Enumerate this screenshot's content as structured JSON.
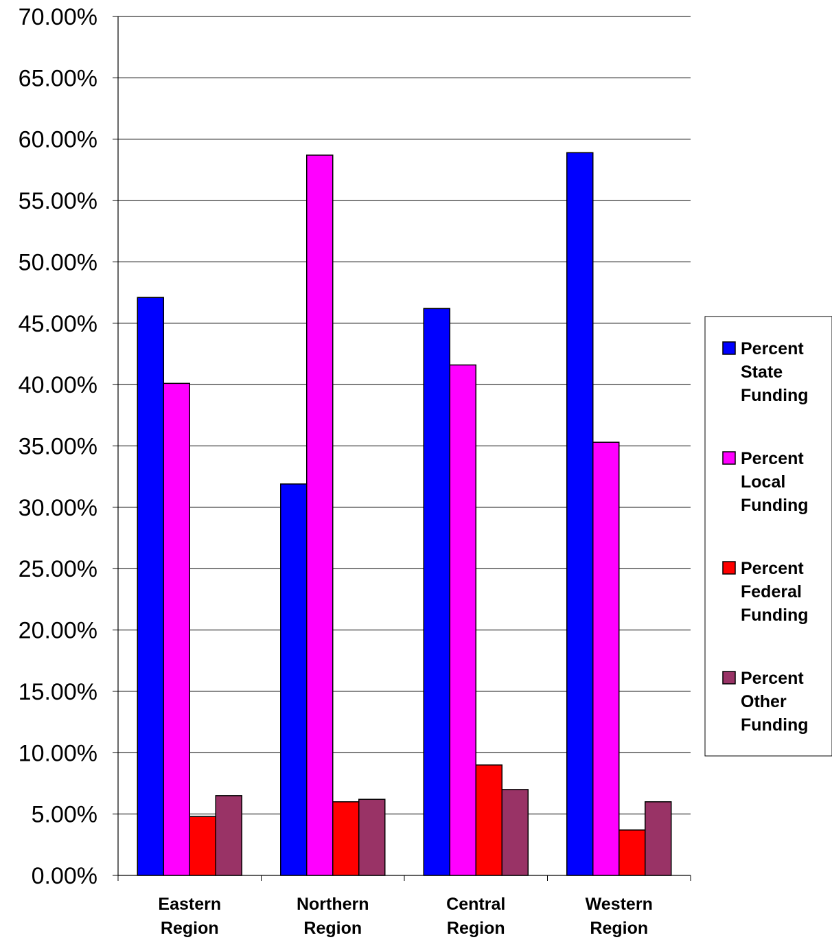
{
  "chart_data": {
    "type": "bar",
    "title": "",
    "xlabel": "",
    "ylabel": "",
    "categories": [
      [
        "Eastern",
        "Region"
      ],
      [
        "Northern",
        "Region"
      ],
      [
        "Central",
        "Region"
      ],
      [
        "Western",
        "Region"
      ]
    ],
    "ylim": [
      0,
      0.7
    ],
    "ytick_step": 0.05,
    "ytick_labels": [
      "0.00%",
      "5.00%",
      "10.00%",
      "15.00%",
      "20.00%",
      "25.00%",
      "30.00%",
      "35.00%",
      "40.00%",
      "45.00%",
      "50.00%",
      "55.00%",
      "60.00%",
      "65.00%",
      "70.00%"
    ],
    "grid": true,
    "legend_position": "right",
    "series": [
      {
        "name": [
          "Percent",
          "State",
          "Funding"
        ],
        "color": "#0000ff",
        "values": [
          0.471,
          0.319,
          0.462,
          0.589
        ]
      },
      {
        "name": [
          "Percent",
          "Local",
          "Funding"
        ],
        "color": "#ff00ff",
        "values": [
          0.401,
          0.587,
          0.416,
          0.353
        ]
      },
      {
        "name": [
          "Percent",
          "Federal",
          "Funding"
        ],
        "color": "#ff0000",
        "values": [
          0.048,
          0.06,
          0.09,
          0.037
        ]
      },
      {
        "name": [
          "Percent",
          "Other",
          "Funding"
        ],
        "color": "#993366",
        "values": [
          0.065,
          0.062,
          0.07,
          0.06
        ]
      }
    ]
  }
}
